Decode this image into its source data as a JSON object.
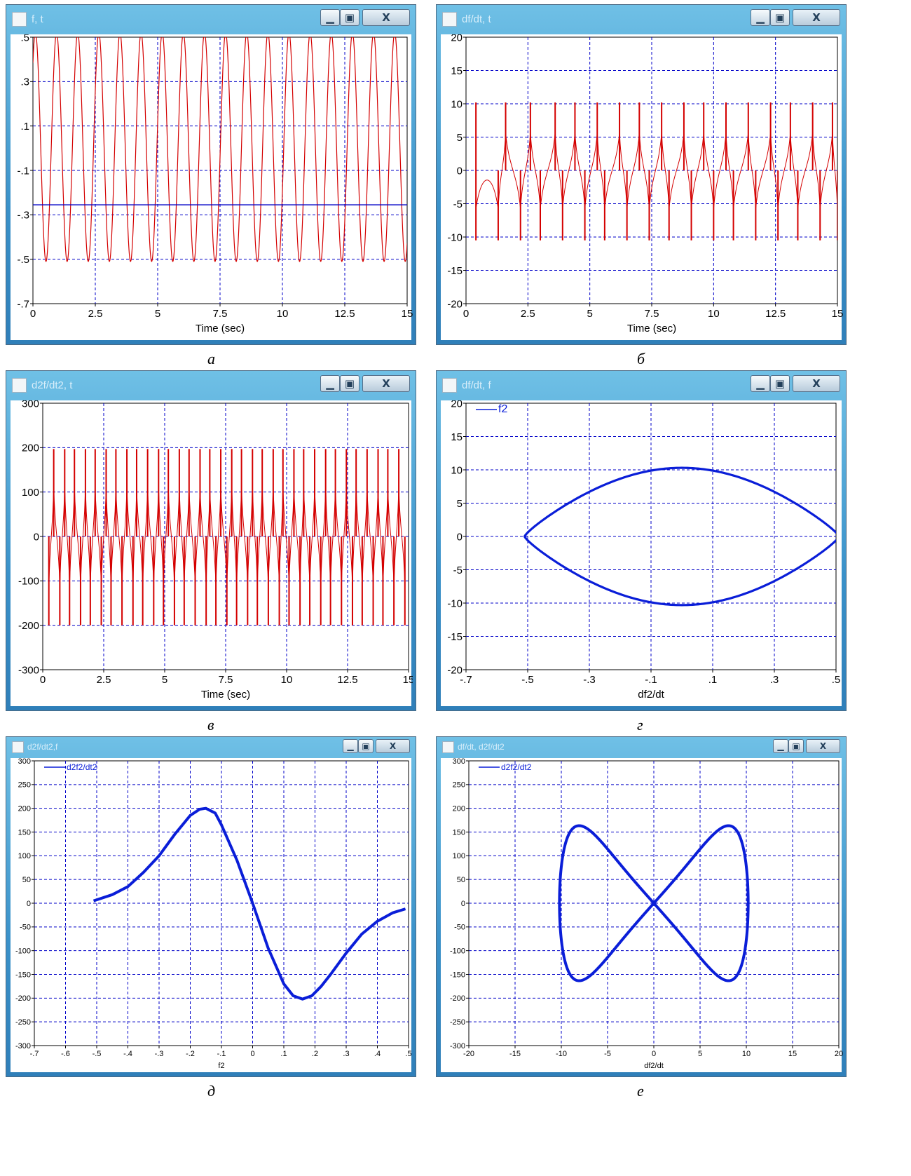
{
  "panels": [
    {
      "id": "a",
      "title": "f, t",
      "caption": "а",
      "colors": {
        "trace": "#d40000",
        "grid": "#0000c8",
        "axis_line": "#0000c8"
      },
      "chart_data": {
        "type": "line",
        "series_kind": "periodic_wave",
        "xlabel": "Time (sec)",
        "ylabel": "",
        "x_ticks": [
          "0",
          "2.5",
          "5",
          "7.5",
          "10",
          "12.5",
          "15"
        ],
        "y_ticks": [
          ".5",
          ".3",
          ".1",
          "-.1",
          "-.3",
          "-.5",
          "-.7"
        ],
        "xlim": [
          0,
          15
        ],
        "ylim": [
          -0.7,
          0.5
        ],
        "grid": true,
        "series": [
          {
            "color": "#d40000",
            "peak_times": [
              0.1,
              0.9,
              1.8,
              2.6,
              3.5,
              4.3,
              5.2,
              6.0,
              6.9,
              7.7,
              8.6,
              9.4,
              10.3,
              11.1,
              12.0,
              12.8,
              13.7,
              14.5
            ],
            "max": 0.52,
            "min": -0.51
          }
        ],
        "constant_line": {
          "y": -0.255,
          "color": "#0000c8"
        }
      }
    },
    {
      "id": "b",
      "title": "df/dt, t",
      "caption": "б",
      "colors": {
        "trace": "#d40000",
        "grid": "#0000c8"
      },
      "chart_data": {
        "type": "line",
        "series_kind": "periodic_spikes",
        "xlabel": "Time (sec)",
        "ylabel": "",
        "x_ticks": [
          "0",
          "2.5",
          "5",
          "7.5",
          "10",
          "12.5",
          "15"
        ],
        "y_ticks": [
          "20",
          "15",
          "10",
          "5",
          "0",
          "-5",
          "-10",
          "-15",
          "-20"
        ],
        "xlim": [
          0,
          15
        ],
        "ylim": [
          -20,
          20
        ],
        "grid": true,
        "series": [
          {
            "color": "#d40000",
            "positive_spike_times": [
              0.4,
              1.6,
              2.6,
              3.6,
              4.4,
              5.3,
              6.2,
              7.0,
              7.9,
              8.8,
              9.6,
              10.5,
              11.4,
              12.3,
              13.1,
              14.0,
              14.8
            ],
            "negative_spike_times": [
              0.4,
              1.3,
              2.2,
              3.0,
              3.9,
              4.8,
              5.6,
              6.5,
              7.4,
              8.2,
              9.1,
              10.0,
              10.8,
              11.7,
              12.6,
              13.4,
              14.3,
              15.0
            ],
            "max": 10.2,
            "min": -10.5
          }
        ]
      }
    },
    {
      "id": "c",
      "title": "d2f/dt2, t",
      "caption": "в",
      "colors": {
        "trace": "#d40000",
        "grid": "#0000c8"
      },
      "chart_data": {
        "type": "line",
        "series_kind": "periodic_spikes",
        "xlabel": "Time (sec)",
        "ylabel": "",
        "x_ticks": [
          "0",
          "2.5",
          "5",
          "7.5",
          "10",
          "12.5",
          "15"
        ],
        "y_ticks": [
          "300",
          "200",
          "100",
          "0",
          "-100",
          "-200",
          "-300"
        ],
        "xlim": [
          0,
          15
        ],
        "ylim": [
          -300,
          300
        ],
        "grid": true,
        "series": [
          {
            "color": "#d40000",
            "positive_spike_times": [
              0.45,
              0.9,
              1.3,
              1.75,
              2.15,
              2.6,
              3.0,
              3.45,
              3.85,
              4.3,
              4.75,
              5.15,
              5.6,
              6.0,
              6.45,
              6.85,
              7.3,
              7.75,
              8.15,
              8.6,
              9.0,
              9.45,
              9.85,
              10.3,
              10.7,
              11.15,
              11.6,
              12.0,
              12.45,
              12.85,
              13.3,
              13.75,
              14.15,
              14.6
            ],
            "negative_spike_times": [
              0.25,
              0.7,
              1.1,
              1.55,
              1.95,
              2.4,
              2.8,
              3.25,
              3.7,
              4.1,
              4.55,
              4.95,
              5.4,
              5.8,
              6.25,
              6.7,
              7.1,
              7.55,
              7.95,
              8.4,
              8.8,
              9.25,
              9.7,
              10.1,
              10.55,
              10.95,
              11.4,
              11.8,
              12.25,
              12.7,
              13.1,
              13.55,
              13.95,
              14.4,
              14.85
            ],
            "max": 197,
            "min": -200
          }
        ]
      }
    },
    {
      "id": "d",
      "title": "df/dt, f",
      "caption": "г",
      "colors": {
        "trace": "#0a1ed8",
        "grid": "#0000c8"
      },
      "chart_data": {
        "type": "line",
        "series_kind": "phase_portrait",
        "xlabel": "df2/dt",
        "ylabel": "",
        "x_ticks": [
          "-.7",
          "-.5",
          "-.3",
          "-.1",
          ".1",
          ".3",
          ".5"
        ],
        "y_ticks": [
          "20",
          "15",
          "10",
          "5",
          "0",
          "-5",
          "-10",
          "-15",
          "-20"
        ],
        "xlim": [
          -0.7,
          0.5
        ],
        "ylim": [
          -20,
          20
        ],
        "grid": true,
        "legend": {
          "position": "top-left"
        },
        "series": [
          {
            "name": "f2",
            "color": "#0a1ed8",
            "amplitude_x": 0.51,
            "amplitude_y": 10.3,
            "center_x": 0.0
          }
        ]
      }
    },
    {
      "id": "e",
      "title": "d2f/dt2,f",
      "caption": "д",
      "colors": {
        "trace": "#0a1ed8",
        "grid": "#0000c8"
      },
      "chart_data": {
        "type": "line",
        "series_kind": "curve",
        "xlabel": "f2",
        "ylabel": "",
        "x_ticks": [
          "-.7",
          "-.6",
          "-.5",
          "-.4",
          "-.3",
          "-.2",
          "-.1",
          "0",
          ".1",
          ".2",
          ".3",
          ".4",
          ".5"
        ],
        "y_ticks": [
          "300",
          "250",
          "200",
          "150",
          "100",
          "50",
          "0",
          "-50",
          "-100",
          "-150",
          "-200",
          "-250",
          "-300"
        ],
        "xlim": [
          -0.7,
          0.5
        ],
        "ylim": [
          -300,
          300
        ],
        "grid": true,
        "legend": {
          "position": "top-left"
        },
        "series": [
          {
            "name": "d2f2/dt2",
            "color": "#0a1ed8",
            "x": [
              -0.51,
              -0.45,
              -0.4,
              -0.35,
              -0.3,
              -0.25,
              -0.2,
              -0.17,
              -0.15,
              -0.12,
              -0.1,
              -0.05,
              0.0,
              0.05,
              0.1,
              0.13,
              0.16,
              0.19,
              0.22,
              0.25,
              0.3,
              0.35,
              0.4,
              0.45,
              0.49
            ],
            "y": [
              5,
              18,
              35,
              65,
              100,
              145,
              185,
              198,
              200,
              190,
              165,
              90,
              0,
              -95,
              -170,
              -195,
              -202,
              -195,
              -175,
              -150,
              -105,
              -65,
              -38,
              -20,
              -12
            ]
          }
        ]
      }
    },
    {
      "id": "f",
      "title": "df/dt, d2f/dt2",
      "caption": "е",
      "colors": {
        "trace": "#0a1ed8",
        "grid": "#0000c8"
      },
      "chart_data": {
        "type": "line",
        "series_kind": "phase_portrait_figure8",
        "xlabel": "df2/dt",
        "ylabel": "",
        "x_ticks": [
          "-20",
          "-15",
          "-10",
          "-5",
          "0",
          "5",
          "10",
          "15",
          "20"
        ],
        "y_ticks": [
          "300",
          "250",
          "200",
          "150",
          "100",
          "50",
          "0",
          "-50",
          "-100",
          "-150",
          "-200",
          "-250",
          "-300"
        ],
        "xlim": [
          -20,
          20
        ],
        "ylim": [
          -300,
          300
        ],
        "grid": true,
        "legend": {
          "position": "top-left"
        },
        "series": [
          {
            "name": "d2f2/dt2",
            "color": "#0a1ed8",
            "amplitude_x": 10.2,
            "amplitude_y": 203
          }
        ]
      }
    }
  ]
}
